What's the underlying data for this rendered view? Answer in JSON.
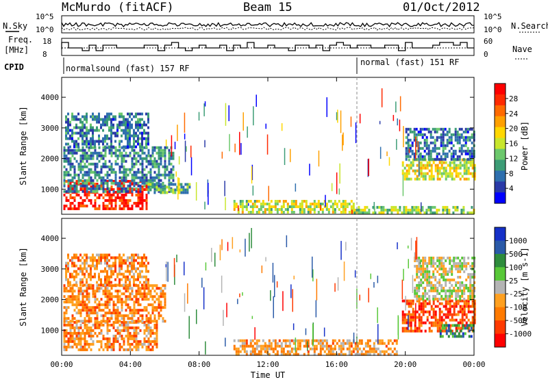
{
  "header": {
    "radar": "McMurdo (fitACF)",
    "beam": "Beam 15",
    "date": "01/Oct/2012"
  },
  "small_panels": {
    "nsky_label": "N.Sky",
    "nsearch_label": "N.Search",
    "nsky_ticks": [
      "10^5",
      "10^0"
    ],
    "nsearch_ticks": [
      "10^5",
      "10^0"
    ],
    "freq_label_1": "Freq.",
    "freq_label_2": "[MHz]",
    "freq_ticks": [
      "18",
      "8"
    ],
    "nave_label": "Nave",
    "nave_ticks": [
      "60",
      "0"
    ],
    "cpid_label": "CPID",
    "cpid_segments": [
      {
        "text": "normalsound (fast) 157 RF",
        "start_hour": 0
      },
      {
        "text": "normal (fast) 151 RF",
        "start_hour": 17.3
      }
    ]
  },
  "chart_data": [
    {
      "type": "heatmap",
      "name": "power",
      "ylabel": "Slant Range [km]",
      "colorbar_label": "Power [dB]",
      "xlim": [
        0,
        24
      ],
      "ylim": [
        180,
        4650
      ],
      "yticks": [
        1000,
        2000,
        3000,
        4000
      ],
      "colorbar_ticks": [
        "28",
        "24",
        "20",
        "16",
        "12",
        "8",
        "4"
      ],
      "colorbar_colors": [
        "#ff0000",
        "#ff2a00",
        "#ff6a00",
        "#ffa000",
        "#ffd700",
        "#c8e62c",
        "#6cc86c",
        "#3c9c76",
        "#2e6fae",
        "#2a3aa8",
        "#0000ff"
      ],
      "regions": [
        {
          "h0": 0.1,
          "h1": 5.0,
          "r0": 350,
          "r1": 1300,
          "level": 0.95
        },
        {
          "h0": 0.1,
          "h1": 6.5,
          "r0": 900,
          "r1": 2400,
          "level": 0.25
        },
        {
          "h0": 0.2,
          "h1": 5.0,
          "r0": 2400,
          "r1": 3500,
          "level": 0.2
        },
        {
          "h0": 5.0,
          "h1": 7.5,
          "r0": 850,
          "r1": 1200,
          "level": 0.35
        },
        {
          "h0": 10.0,
          "h1": 17.0,
          "r0": 250,
          "r1": 650,
          "level": 0.5
        },
        {
          "h0": 17.0,
          "h1": 24.0,
          "r0": 250,
          "r1": 450,
          "level": 0.45
        },
        {
          "h0": 19.8,
          "h1": 24.0,
          "r0": 1300,
          "r1": 2000,
          "level": 0.55
        },
        {
          "h0": 20.0,
          "h1": 24.0,
          "r0": 2000,
          "r1": 3000,
          "level": 0.2
        }
      ]
    },
    {
      "type": "heatmap",
      "name": "velocity",
      "ylabel": "Slant Range [km]",
      "xlabel": "Time UT",
      "colorbar_label": "Velocity [m s-1]",
      "xlim": [
        0,
        24
      ],
      "ylim": [
        180,
        4650
      ],
      "yticks": [
        1000,
        2000,
        3000,
        4000
      ],
      "xticks": [
        "00:00",
        "04:00",
        "08:00",
        "12:00",
        "16:00",
        "20:00",
        "00:00"
      ],
      "colorbar_ticks": [
        "1000",
        "500",
        "100",
        "25",
        "-25",
        "-100",
        "-500",
        "-1000"
      ],
      "colorbar_colors": [
        "#1530c8",
        "#2a5aa8",
        "#2e8c3c",
        "#58c838",
        "#b4b4b4",
        "#ffa020",
        "#ff7a00",
        "#ff3a00",
        "#ff0000"
      ],
      "regions": [
        {
          "h0": 0.1,
          "h1": 5.5,
          "r0": 400,
          "r1": 1300,
          "level": 0.3
        },
        {
          "h0": 0.1,
          "h1": 6.0,
          "r0": 1300,
          "r1": 2500,
          "level": 0.3
        },
        {
          "h0": 0.2,
          "h1": 5.0,
          "r0": 2500,
          "r1": 3500,
          "level": 0.3
        },
        {
          "h0": 10.0,
          "h1": 19.5,
          "r0": 250,
          "r1": 700,
          "level": 0.35
        },
        {
          "h0": 19.8,
          "h1": 24.0,
          "r0": 1000,
          "r1": 2000,
          "level": 0.15
        },
        {
          "h0": 22.0,
          "h1": 24.0,
          "r0": 800,
          "r1": 1200,
          "level": 0.78
        },
        {
          "h0": 20.5,
          "h1": 24.0,
          "r0": 2000,
          "r1": 3400,
          "level": 0.5
        }
      ]
    }
  ]
}
